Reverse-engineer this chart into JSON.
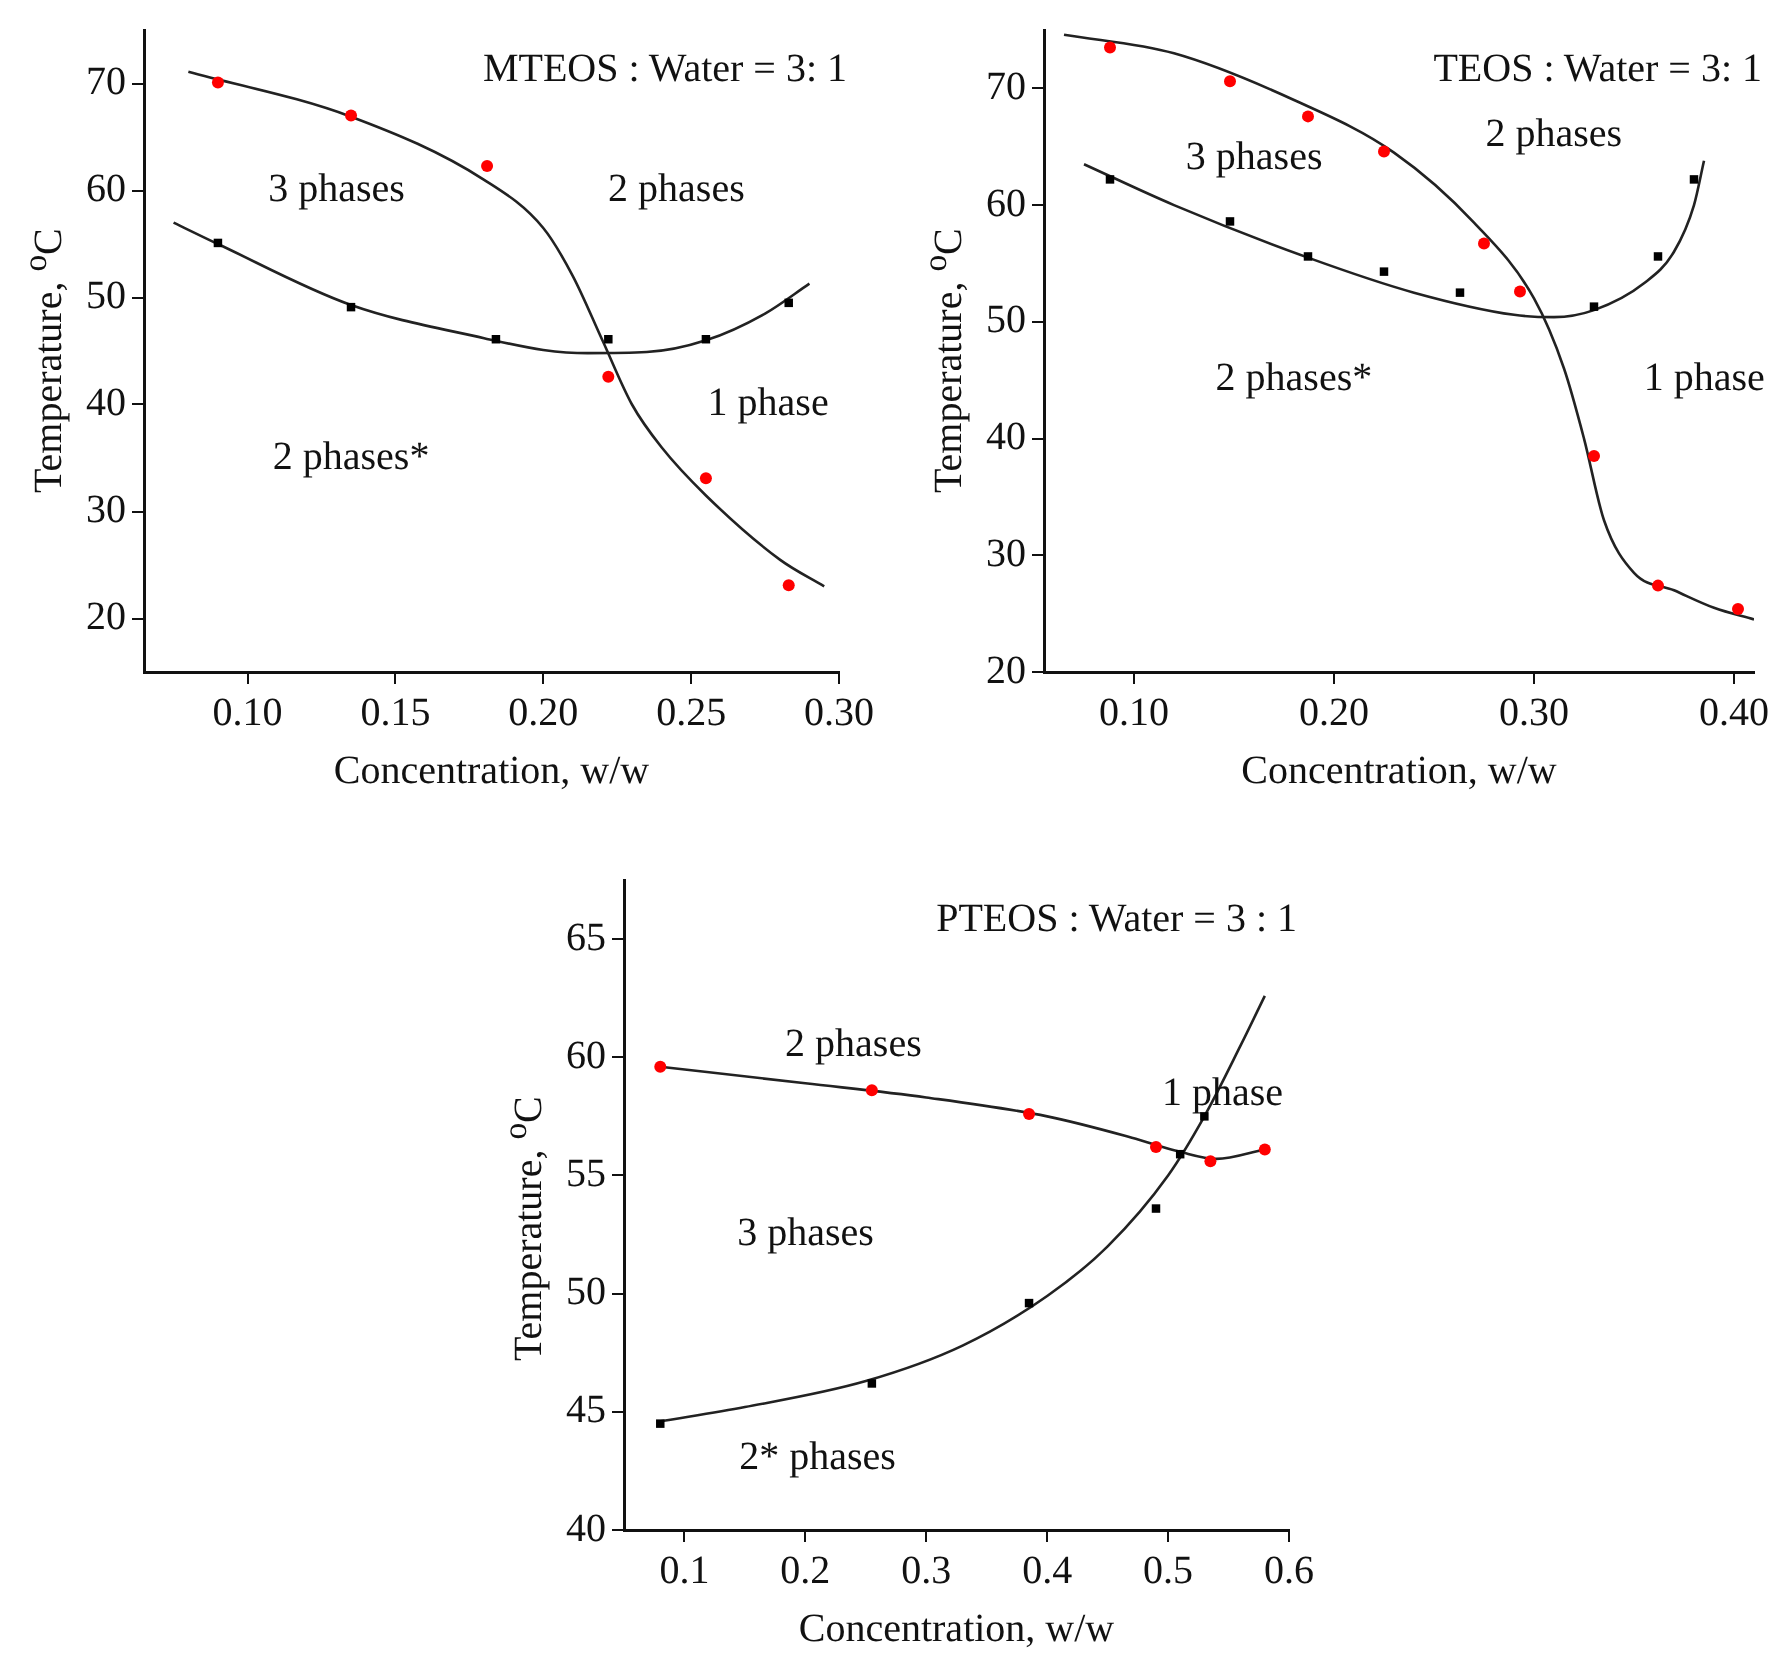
{
  "chart_data": [
    {
      "type": "scatter",
      "title": "MTEOS : Water = 3: 1",
      "xlabel": "Concentration, w/w",
      "ylabel": "Temperature, $^{o}$C",
      "xlim": [
        0.065,
        0.3
      ],
      "ylim": [
        15,
        75
      ],
      "xticks": [
        {
          "value": 0.1,
          "label": "0.10"
        },
        {
          "value": 0.15,
          "label": "0.15"
        },
        {
          "value": 0.2,
          "label": "0.20"
        },
        {
          "value": 0.25,
          "label": "0.25"
        },
        {
          "value": 0.3,
          "label": "0.30"
        }
      ],
      "yticks": [
        20,
        30,
        40,
        50,
        60,
        70
      ],
      "grid": false,
      "series": [
        {
          "type": "scatter",
          "marker": "circle",
          "color": "#ff0000",
          "x": [
            0.09,
            0.135,
            0.181,
            0.222,
            0.255,
            0.283
          ],
          "values": [
            70.1,
            67,
            62.3,
            42.6,
            33.1,
            23.1
          ]
        },
        {
          "type": "scatter",
          "marker": "square",
          "color": "#000000",
          "x": [
            0.09,
            0.135,
            0.184,
            0.222,
            0.255,
            0.283
          ],
          "values": [
            55.1,
            49.1,
            46.1,
            46.1,
            46.1,
            49.5
          ]
        },
        {
          "type": "line",
          "marker": "none",
          "color": "#222222",
          "x": [
            0.08,
            0.135,
            0.18,
            0.2,
            0.21,
            0.22,
            0.23,
            0.24,
            0.255,
            0.28,
            0.295
          ],
          "values": [
            71.1,
            66.9,
            61,
            56.5,
            52,
            46,
            40,
            36,
            31.5,
            25.5,
            23
          ]
        },
        {
          "type": "line",
          "marker": "none",
          "color": "#222222",
          "x": [
            0.075,
            0.09,
            0.135,
            0.18,
            0.2,
            0.215,
            0.235,
            0.255,
            0.275,
            0.29
          ],
          "values": [
            57,
            55,
            49.3,
            46.2,
            45.1,
            44.8,
            44.9,
            46,
            48.5,
            51.3
          ]
        }
      ],
      "annotations": [
        "3 phases",
        "2 phases",
        "1 phase",
        "2 phases*"
      ]
    },
    {
      "type": "scatter",
      "title": "TEOS : Water = 3: 1",
      "xlabel": "Concentration, w/w",
      "ylabel": "Temperature, $^{o}$C",
      "xlim": [
        0.055,
        0.41
      ],
      "ylim": [
        20,
        75
      ],
      "xticks": [
        {
          "value": 0.1,
          "label": "0.10"
        },
        {
          "value": 0.2,
          "label": "0.20"
        },
        {
          "value": 0.3,
          "label": "0.30"
        },
        {
          "value": 0.4,
          "label": "0.40"
        }
      ],
      "yticks": [
        20,
        30,
        40,
        50,
        60,
        70
      ],
      "grid": false,
      "series": [
        {
          "type": "scatter",
          "marker": "circle",
          "color": "#ff0000",
          "x": [
            0.088,
            0.148,
            0.187,
            0.225,
            0.275,
            0.293,
            0.33,
            0.362,
            0.402
          ],
          "values": [
            73.5,
            70.6,
            67.6,
            64.6,
            56.7,
            52.6,
            38.5,
            27.4,
            25.4
          ]
        },
        {
          "type": "scatter",
          "marker": "square",
          "color": "#000000",
          "x": [
            0.088,
            0.148,
            0.187,
            0.225,
            0.263,
            0.33,
            0.362,
            0.38
          ],
          "values": [
            62.2,
            58.6,
            55.6,
            54.3,
            52.5,
            51.3,
            55.6,
            62.2
          ]
        },
        {
          "type": "line",
          "marker": "none",
          "color": "#222222",
          "x": [
            0.065,
            0.12,
            0.18,
            0.23,
            0.27,
            0.3,
            0.315,
            0.325,
            0.335,
            0.35,
            0.37,
            0.39,
            0.41
          ],
          "values": [
            74.6,
            73,
            69,
            64.5,
            58.5,
            52,
            46,
            40,
            33,
            28.5,
            27,
            25.5,
            24.5
          ]
        },
        {
          "type": "line",
          "marker": "none",
          "color": "#222222",
          "x": [
            0.075,
            0.12,
            0.187,
            0.24,
            0.29,
            0.31,
            0.33,
            0.355,
            0.37,
            0.38,
            0.385
          ],
          "values": [
            63.5,
            60,
            55.5,
            52.5,
            50.6,
            50.4,
            51,
            53.3,
            56,
            60,
            63.8
          ]
        }
      ],
      "annotations": [
        "3 phases",
        "2 phases",
        "2 phases*",
        "1 phase"
      ]
    },
    {
      "type": "scatter",
      "title": "PTEOS : Water = 3 : 1",
      "xlabel": "Concentration, w/w",
      "ylabel": "Temperature, $^{o}$C",
      "xlim": [
        0.05,
        0.6
      ],
      "ylim": [
        40,
        67.5
      ],
      "xticks": [
        0.1,
        0.2,
        0.3,
        0.4,
        0.5,
        0.6
      ],
      "yticks": [
        40,
        45,
        50,
        55,
        60,
        65
      ],
      "grid": false,
      "series": [
        {
          "type": "scatter",
          "marker": "circle",
          "color": "#ff0000",
          "x": [
            0.08,
            0.255,
            0.385,
            0.49,
            0.535,
            0.58
          ],
          "values": [
            59.6,
            58.6,
            57.6,
            56.2,
            55.6,
            56.1
          ]
        },
        {
          "type": "scatter",
          "marker": "square",
          "color": "#000000",
          "x": [
            0.08,
            0.255,
            0.385,
            0.49,
            0.51,
            0.53
          ],
          "values": [
            44.5,
            46.2,
            49.6,
            53.6,
            55.9,
            57.5
          ]
        },
        {
          "type": "line",
          "marker": "none",
          "color": "#222222",
          "x": [
            0.08,
            0.2,
            0.3,
            0.4,
            0.47,
            0.51,
            0.54,
            0.58
          ],
          "values": [
            59.6,
            58.9,
            58.3,
            57.5,
            56.6,
            56,
            55.7,
            56.1
          ]
        },
        {
          "type": "line",
          "marker": "none",
          "color": "#222222",
          "x": [
            0.08,
            0.15,
            0.25,
            0.33,
            0.4,
            0.45,
            0.5,
            0.53,
            0.56,
            0.58
          ],
          "values": [
            44.6,
            45.2,
            46.3,
            47.8,
            49.9,
            52,
            55,
            57.5,
            60.5,
            62.6
          ]
        }
      ],
      "annotations": [
        "2 phases",
        "1 phase",
        "3 phases",
        "2* phases"
      ]
    }
  ]
}
